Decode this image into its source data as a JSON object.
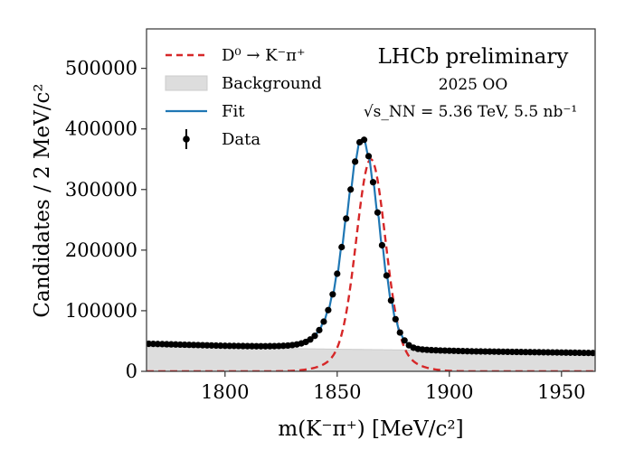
{
  "chart_data": {
    "type": "scatter",
    "title": "",
    "xlabel": "m(K⁻π⁺) [MeV/c²]",
    "ylabel": "Candidates / 2 MeV/c²",
    "xlim": [
      1765,
      1965
    ],
    "ylim": [
      0,
      565000
    ],
    "xticks": [
      1800,
      1850,
      1900,
      1950
    ],
    "xtick_labels": [
      "1800",
      "1850",
      "1900",
      "1950"
    ],
    "yticks": [
      0,
      100000,
      200000,
      300000,
      400000,
      500000
    ],
    "ytick_labels": [
      "0",
      "100000",
      "200000",
      "300000",
      "400000",
      "500000"
    ],
    "grid": false,
    "legend_position": "top-left",
    "legend": [
      {
        "label": "D⁰ → K⁻π⁺",
        "style": "dashed-line",
        "color": "#d62728"
      },
      {
        "label": "Background",
        "style": "filled-area",
        "color": "#dddddd"
      },
      {
        "label": "Fit",
        "style": "line",
        "color": "#1f77b4"
      },
      {
        "label": "Data",
        "style": "errorbar-marker",
        "color": "#000000"
      }
    ],
    "annotations": {
      "experiment": "LHCb preliminary",
      "dataset": "2025 OO",
      "energy": "√s_NN = 5.36 TeV, 5.5 nb⁻¹"
    },
    "series": [
      {
        "name": "Data",
        "type": "scatter",
        "x": [
          1766,
          1768,
          1770,
          1772,
          1774,
          1776,
          1778,
          1780,
          1782,
          1784,
          1786,
          1788,
          1790,
          1792,
          1794,
          1796,
          1798,
          1800,
          1802,
          1804,
          1806,
          1808,
          1810,
          1812,
          1814,
          1816,
          1818,
          1820,
          1822,
          1824,
          1826,
          1828,
          1830,
          1832,
          1834,
          1836,
          1838,
          1840,
          1842,
          1844,
          1846,
          1848,
          1850,
          1852,
          1854,
          1856,
          1858,
          1860,
          1862,
          1864,
          1866,
          1868,
          1870,
          1872,
          1874,
          1876,
          1878,
          1880,
          1882,
          1884,
          1886,
          1888,
          1890,
          1892,
          1894,
          1896,
          1898,
          1900,
          1902,
          1904,
          1906,
          1908,
          1910,
          1912,
          1914,
          1916,
          1918,
          1920,
          1922,
          1924,
          1926,
          1928,
          1930,
          1932,
          1934,
          1936,
          1938,
          1940,
          1942,
          1944,
          1946,
          1948,
          1950,
          1952,
          1954,
          1956,
          1958,
          1960,
          1962,
          1964
        ],
        "y": [
          45500,
          45300,
          45100,
          44900,
          44700,
          44500,
          44300,
          44100,
          43900,
          43700,
          43500,
          43300,
          43100,
          42900,
          42700,
          42500,
          42300,
          42100,
          42000,
          41900,
          41800,
          41700,
          41600,
          41500,
          41400,
          41400,
          41400,
          41500,
          41600,
          41800,
          42100,
          42600,
          43300,
          44400,
          46000,
          48500,
          52500,
          58500,
          68000,
          82000,
          101000,
          127000,
          161000,
          205000,
          252000,
          300000,
          346000,
          378000,
          382000,
          355000,
          312000,
          262000,
          208000,
          158000,
          117000,
          86000,
          64000,
          51000,
          43000,
          39000,
          37000,
          36000,
          35500,
          35000,
          34700,
          34400,
          34200,
          34000,
          33800,
          33600,
          33400,
          33200,
          33000,
          32900,
          32800,
          32700,
          32600,
          32500,
          32400,
          32300,
          32200,
          32100,
          32000,
          31900,
          31800,
          31700,
          31600,
          31500,
          31400,
          31300,
          31200,
          31100,
          31000,
          30900,
          30800,
          30700,
          30600,
          30500,
          30400,
          30300
        ]
      },
      {
        "name": "Fit",
        "type": "line",
        "description": "Total fit = signal + background"
      },
      {
        "name": "D⁰ → K⁻π⁺",
        "type": "line",
        "peak_x": 1865,
        "peak_y": 350000,
        "sigma": 6.3
      },
      {
        "name": "Background",
        "type": "area",
        "x": [
          1765,
          1800,
          1850,
          1900,
          1965
        ],
        "y": [
          40500,
          39000,
          36500,
          34500,
          30000
        ]
      }
    ]
  }
}
